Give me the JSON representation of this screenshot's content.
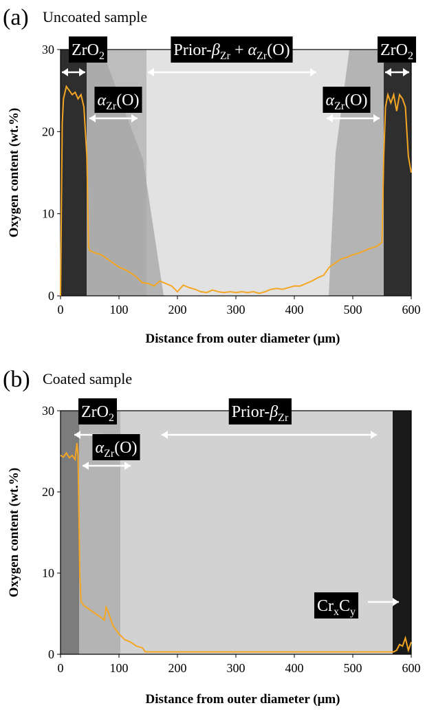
{
  "chart_data": [
    {
      "type": "line",
      "label": "(a)",
      "title": "Uncoated sample",
      "xlabel": "Distance from outer diameter (μm)",
      "ylabel": "Oxygen content (wt.%)",
      "xlim": [
        0,
        600
      ],
      "ylim": [
        0,
        30
      ],
      "xticks": [
        0,
        100,
        200,
        300,
        400,
        500,
        600
      ],
      "yticks": [
        0,
        10,
        20,
        30
      ],
      "color": "#f5a623",
      "x": [
        0,
        3,
        5,
        10,
        15,
        20,
        25,
        30,
        35,
        40,
        45,
        48,
        50,
        60,
        70,
        80,
        90,
        100,
        110,
        120,
        130,
        140,
        150,
        160,
        170,
        180,
        190,
        200,
        210,
        220,
        230,
        240,
        250,
        260,
        270,
        280,
        290,
        300,
        310,
        320,
        330,
        340,
        350,
        360,
        370,
        380,
        390,
        400,
        410,
        420,
        430,
        440,
        450,
        460,
        470,
        480,
        490,
        500,
        510,
        520,
        530,
        540,
        550,
        553,
        556,
        560,
        565,
        570,
        575,
        580,
        585,
        590,
        595,
        600
      ],
      "values": [
        0,
        21,
        24,
        25.5,
        25,
        24.5,
        24.8,
        24,
        24.5,
        23,
        17,
        6,
        5.5,
        5.2,
        5,
        4.5,
        4,
        3.5,
        3.2,
        2.8,
        2.3,
        1.6,
        1.5,
        1.2,
        1.8,
        1.5,
        1.2,
        0.5,
        1.3,
        1,
        0.8,
        0.5,
        0.4,
        0.7,
        0.5,
        0.4,
        0.5,
        0.4,
        0.5,
        0.4,
        0.5,
        0.3,
        0.5,
        0.8,
        0.9,
        0.8,
        1,
        1.2,
        1.2,
        1.5,
        1.8,
        2.2,
        2.5,
        3.5,
        4,
        4.5,
        4.7,
        5,
        5.2,
        5.5,
        5.8,
        6,
        6.5,
        17,
        23,
        24.5,
        23.5,
        24.5,
        22.5,
        24.5,
        24,
        23,
        17,
        15
      ],
      "annotations": [
        {
          "label": [
            "ZrO",
            {
              "sub": "2"
            }
          ]
        },
        {
          "label": [
            "Prior-",
            {
              "i": "β"
            },
            {
              "sub": "Zr"
            },
            " + ",
            {
              "i": "α"
            },
            {
              "sub": "Zr"
            },
            "(O)"
          ]
        },
        {
          "label": [
            "ZrO",
            {
              "sub": "2"
            }
          ]
        },
        {
          "label": [
            {
              "i": "α"
            },
            {
              "sub": "Zr"
            },
            "(O)"
          ]
        },
        {
          "label": [
            {
              "i": "α"
            },
            {
              "sub": "Zr"
            },
            "(O)"
          ]
        }
      ]
    },
    {
      "type": "line",
      "label": "(b)",
      "title": "Coated sample",
      "xlabel": "Distance from outer diameter (μm)",
      "ylabel": "Oxygen content (wt.%)",
      "xlim": [
        0,
        600
      ],
      "ylim": [
        0,
        30
      ],
      "xticks": [
        0,
        100,
        200,
        300,
        400,
        500,
        600
      ],
      "yticks": [
        0,
        10,
        20,
        30
      ],
      "color": "#f5a623",
      "x": [
        0,
        5,
        10,
        15,
        20,
        25,
        28,
        30,
        33,
        35,
        40,
        50,
        60,
        70,
        75,
        78,
        80,
        85,
        90,
        95,
        100,
        110,
        120,
        130,
        140,
        145,
        150,
        200,
        250,
        300,
        350,
        400,
        450,
        500,
        550,
        570,
        575,
        580,
        585,
        590,
        595,
        600
      ],
      "values": [
        24.5,
        24.3,
        24.8,
        24.2,
        24.5,
        24,
        26,
        24.5,
        10,
        6.5,
        6,
        5.5,
        5,
        4.5,
        4.2,
        5.8,
        5.5,
        4.5,
        3.5,
        3,
        2.5,
        1.8,
        1.5,
        1,
        0.8,
        0.3,
        0.3,
        0.3,
        0.3,
        0.3,
        0.3,
        0.3,
        0.3,
        0.3,
        0.3,
        0.3,
        0.5,
        1.2,
        1,
        2,
        0.5,
        1.5
      ],
      "annotations": [
        {
          "label": [
            "ZrO",
            {
              "sub": "2"
            }
          ]
        },
        {
          "label": [
            "Prior-",
            {
              "i": "β"
            },
            {
              "sub": "Zr"
            }
          ]
        },
        {
          "label": [
            {
              "i": "α"
            },
            {
              "sub": "Zr"
            },
            "(O)"
          ]
        },
        {
          "label": [
            "Cr",
            {
              "sub": "x"
            },
            "C",
            {
              "sub": "y"
            }
          ]
        }
      ]
    }
  ]
}
